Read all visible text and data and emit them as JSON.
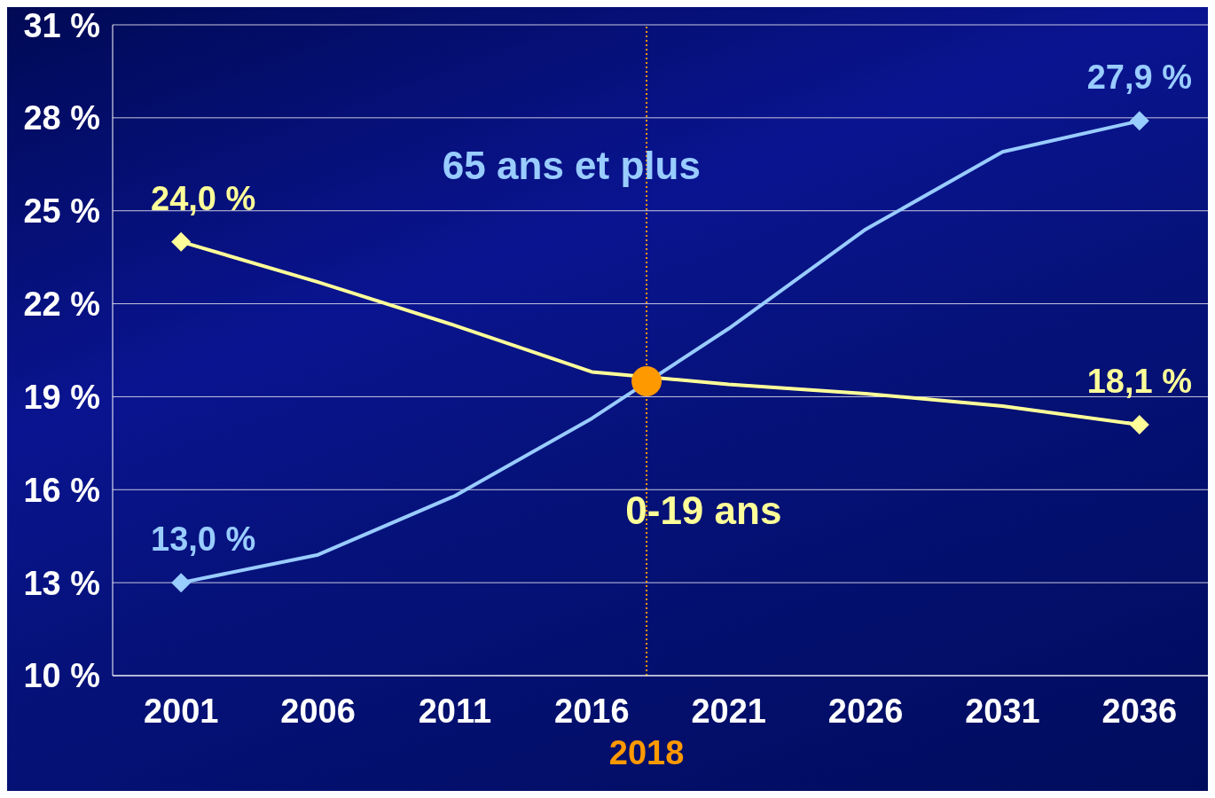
{
  "chart_data": {
    "type": "line",
    "x": [
      2001,
      2006,
      2011,
      2016,
      2021,
      2026,
      2031,
      2036
    ],
    "xlim": [
      1998.5,
      2038.5
    ],
    "xticks": [
      2001,
      2006,
      2011,
      2016,
      2021,
      2026,
      2031,
      2036
    ],
    "ylim": [
      10,
      31
    ],
    "yticks": [
      {
        "value": 10,
        "label": "10 %"
      },
      {
        "value": 13,
        "label": "13 %"
      },
      {
        "value": 16,
        "label": "16 %"
      },
      {
        "value": 19,
        "label": "19 %"
      },
      {
        "value": 22,
        "label": "22 %"
      },
      {
        "value": 25,
        "label": "25 %"
      },
      {
        "value": 28,
        "label": "28 %"
      },
      {
        "value": 31,
        "label": "31 %"
      }
    ],
    "grid": "y",
    "legend": false,
    "line_style": "solid",
    "series": [
      {
        "name": "65 ans et plus",
        "color": "#99ccff",
        "values": [
          13.0,
          13.9,
          15.8,
          18.3,
          21.2,
          24.4,
          26.9,
          27.9
        ],
        "value_labels": [
          "13,0 %",
          null,
          null,
          null,
          null,
          null,
          null,
          "27,9 %"
        ]
      },
      {
        "name": "0-19 ans",
        "color": "#ffff99",
        "values": [
          24.0,
          22.7,
          21.3,
          19.8,
          19.4,
          19.1,
          18.7,
          18.1
        ],
        "value_labels": [
          "24,0 %",
          null,
          null,
          null,
          null,
          null,
          null,
          "18,1 %"
        ]
      },
      {
        "type": "scatter",
        "color": "#ff9900",
        "x": [
          2018
        ],
        "values": [
          19.5
        ],
        "marker": "circle"
      }
    ],
    "ref_lines": [
      {
        "axis": "x",
        "value": 2018,
        "label": "2018",
        "color": "#ff9900",
        "line_style": "dotted"
      }
    ]
  }
}
